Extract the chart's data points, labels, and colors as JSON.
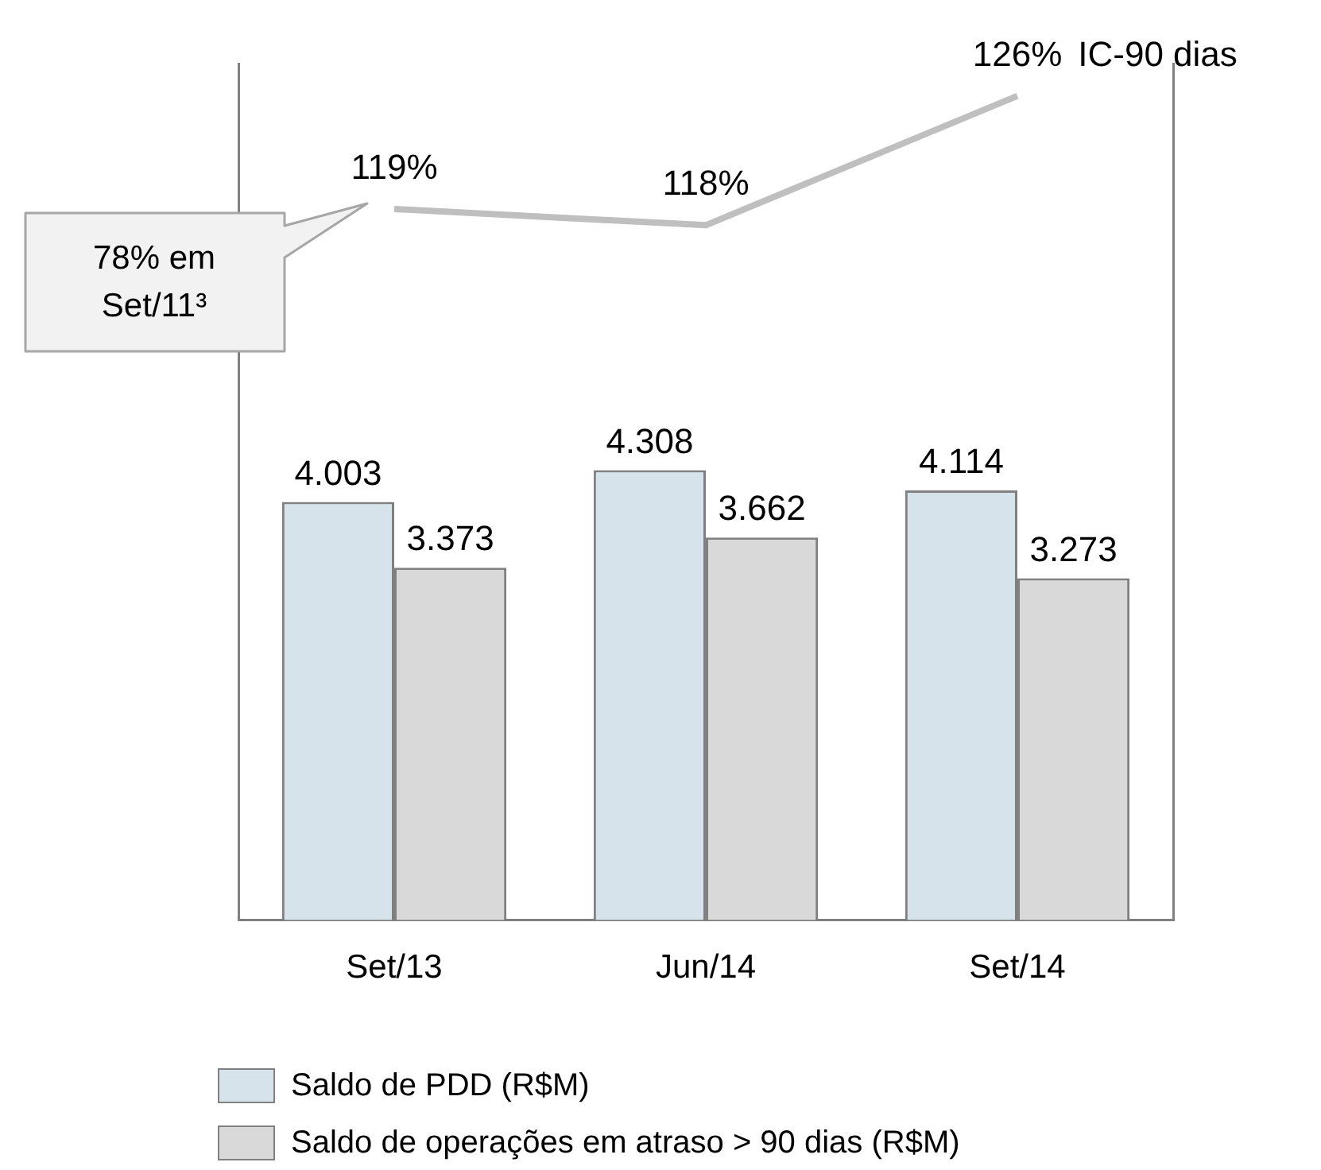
{
  "chart_data": {
    "type": "bar",
    "categories": [
      "Set/13",
      "Jun/14",
      "Set/14"
    ],
    "series": [
      {
        "name": "Saldo de PDD (R$M)",
        "color": "#d6e3ea",
        "values": [
          4.003,
          4.308,
          4.114
        ]
      },
      {
        "name": "Saldo de operações em atraso > 90 dias (R$M)",
        "color": "#d9d9d9",
        "values": [
          3.373,
          3.662,
          3.273
        ]
      },
      {
        "name": "IC-90 dias",
        "type": "line",
        "axis": "y2",
        "color": "#bfbfbf",
        "values": [
          119,
          118,
          126
        ],
        "value_labels": [
          "119%",
          "118%",
          "126%"
        ]
      }
    ],
    "data_labels": true,
    "ylim": [
      0,
      8.2
    ],
    "y2lim": [
      75,
      128
    ],
    "tick_labels": "x",
    "grid": false,
    "legend": "bottom",
    "marker": "none",
    "annotations": [
      "78% em Set/11³"
    ]
  }
}
